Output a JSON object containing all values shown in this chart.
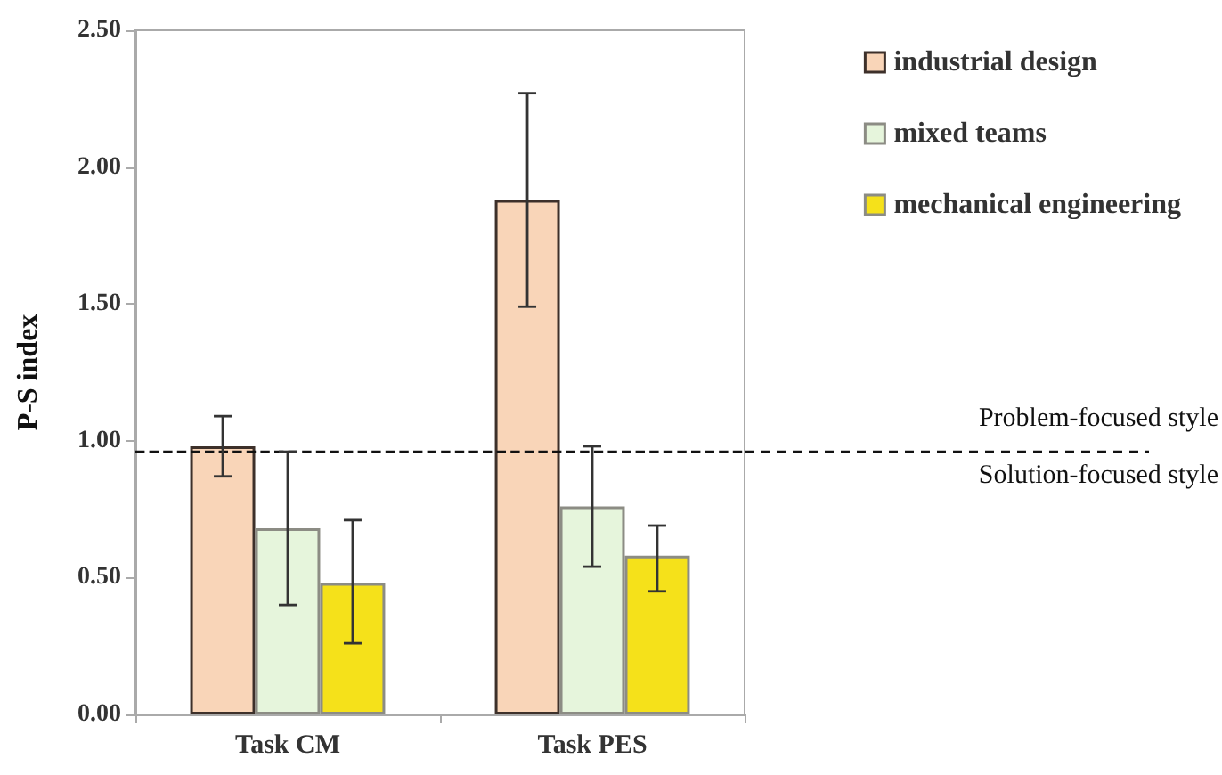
{
  "chart_data": {
    "type": "bar",
    "ylabel": "P-S index",
    "categories": [
      "Task CM",
      "Task PES"
    ],
    "series": [
      {
        "name": "industrial design",
        "color": "#f9d5b8",
        "values": [
          0.98,
          1.88
        ],
        "errors": [
          [
            0.87,
            1.09
          ],
          [
            1.49,
            2.27
          ]
        ]
      },
      {
        "name": "mixed teams",
        "color": "#e6f5dc",
        "values": [
          0.68,
          0.76
        ],
        "errors": [
          [
            0.4,
            0.96
          ],
          [
            0.54,
            0.98
          ]
        ]
      },
      {
        "name": "mechanical engineering",
        "color": "#f5e11a",
        "values": [
          0.48,
          0.58
        ],
        "errors": [
          [
            0.26,
            0.71
          ],
          [
            0.45,
            0.69
          ]
        ]
      }
    ],
    "ylim": [
      0,
      2.5
    ],
    "yticks": [
      {
        "value": 0,
        "label": "0.00"
      },
      {
        "value": 0.5,
        "label": "0.50"
      },
      {
        "value": 1,
        "label": "1.00"
      },
      {
        "value": 1.5,
        "label": "1.50"
      },
      {
        "value": 2,
        "label": "2.00"
      },
      {
        "value": 2.5,
        "label": "2.50"
      }
    ],
    "ref_lines": [
      {
        "axis": "y",
        "value": 0.96,
        "line_style": "dashed"
      }
    ],
    "annotations": [
      "Problem-focused style",
      "Solution-focused style"
    ],
    "legend": "top right",
    "grid": false
  }
}
